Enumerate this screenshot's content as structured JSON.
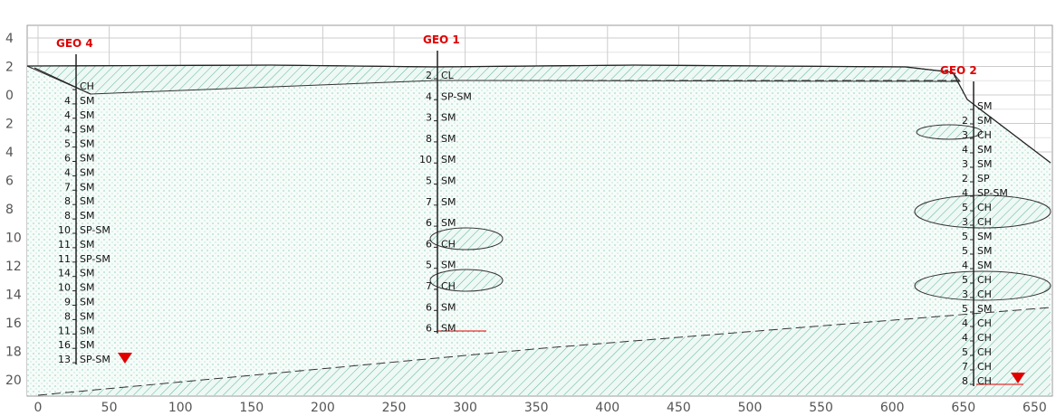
{
  "y_axis_labels": [
    "4",
    "2",
    "0",
    "2",
    "4",
    "6",
    "8",
    "10",
    "12",
    "14",
    "16",
    "18",
    "20"
  ],
  "x_axis_labels": [
    "0",
    "50",
    "100",
    "150",
    "200",
    "250",
    "300",
    "350",
    "400",
    "450",
    "500",
    "550",
    "600",
    "650",
    "650"
  ],
  "boreholes": [
    {
      "name": "GEO 4",
      "layers": [
        {
          "n": null,
          "soil": "CH"
        },
        {
          "n": "4",
          "soil": "SM"
        },
        {
          "n": "4",
          "soil": "SM"
        },
        {
          "n": "4",
          "soil": "SM"
        },
        {
          "n": "5",
          "soil": "SM"
        },
        {
          "n": "6",
          "soil": "SM"
        },
        {
          "n": "4",
          "soil": "SM"
        },
        {
          "n": "7",
          "soil": "SM"
        },
        {
          "n": "8",
          "soil": "SM"
        },
        {
          "n": "8",
          "soil": "SM"
        },
        {
          "n": "10",
          "soil": "SP-SM"
        },
        {
          "n": "11",
          "soil": "SM"
        },
        {
          "n": "11",
          "soil": "SP-SM"
        },
        {
          "n": "14",
          "soil": "SM"
        },
        {
          "n": "10",
          "soil": "SM"
        },
        {
          "n": "9",
          "soil": "SM"
        },
        {
          "n": "8",
          "soil": "SM"
        },
        {
          "n": "11",
          "soil": "SM"
        },
        {
          "n": "16",
          "soil": "SM"
        },
        {
          "n": "13",
          "soil": "SP-SM"
        }
      ]
    },
    {
      "name": "GEO 1",
      "layers": [
        {
          "n": "2",
          "soil": "CL"
        },
        {
          "n": "4",
          "soil": "SP-SM"
        },
        {
          "n": "3",
          "soil": "SM"
        },
        {
          "n": "8",
          "soil": "SM"
        },
        {
          "n": "10",
          "soil": "SM"
        },
        {
          "n": "5",
          "soil": "SM"
        },
        {
          "n": "7",
          "soil": "SM"
        },
        {
          "n": "6",
          "soil": "SM"
        },
        {
          "n": "6",
          "soil": "CH"
        },
        {
          "n": "5",
          "soil": "SM"
        },
        {
          "n": "7",
          "soil": "CH"
        },
        {
          "n": "6",
          "soil": "SM"
        },
        {
          "n": "6",
          "soil": "SM"
        }
      ]
    },
    {
      "name": "GEO 2",
      "layers": [
        {
          "n": null,
          "soil": "SM"
        },
        {
          "n": "2",
          "soil": "SM"
        },
        {
          "n": "3",
          "soil": "CH"
        },
        {
          "n": "4",
          "soil": "SM"
        },
        {
          "n": "3",
          "soil": "SM"
        },
        {
          "n": "2",
          "soil": "SP"
        },
        {
          "n": "4",
          "soil": "SP-SM"
        },
        {
          "n": "5",
          "soil": "CH"
        },
        {
          "n": "3",
          "soil": "CH"
        },
        {
          "n": "5",
          "soil": "SM"
        },
        {
          "n": "5",
          "soil": "SM"
        },
        {
          "n": "4",
          "soil": "SM"
        },
        {
          "n": "5",
          "soil": "CH"
        },
        {
          "n": "3",
          "soil": "CH"
        },
        {
          "n": "5",
          "soil": "SM"
        },
        {
          "n": "4",
          "soil": "CH"
        },
        {
          "n": "4",
          "soil": "CH"
        },
        {
          "n": "5",
          "soil": "CH"
        },
        {
          "n": "7",
          "soil": "CH"
        },
        {
          "n": "8",
          "soil": "CH"
        }
      ]
    }
  ]
}
